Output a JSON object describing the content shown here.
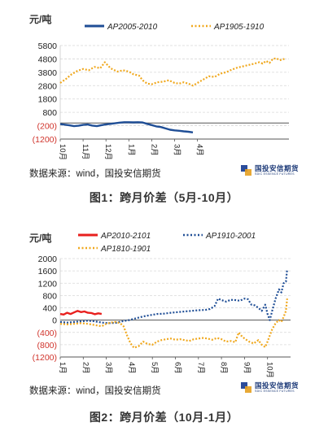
{
  "figure1": {
    "caption": "图1：跨月价差（5月-10月）",
    "source": "数据来源：wind，国投安信期货",
    "logo_text": "国投安信期货",
    "logo_sub": "SDIC ESSENCE FUTURES"
  },
  "figure2": {
    "caption": "图2：跨月价差（10月-1月）",
    "source": "数据来源：wind，国投安信期货",
    "logo_text": "国投安信期货",
    "logo_sub": "SDIC ESSENCE FUTURES"
  },
  "colors": {
    "blue": "#1f4e96",
    "orange": "#f0a81e",
    "red": "#e8201e",
    "grid": "#d8d8d8",
    "axis": "#555555"
  },
  "chart_data": [
    {
      "type": "line",
      "unit": "元/吨",
      "ylim": [
        -1200,
        5800
      ],
      "yticks": [
        5800,
        4800,
        3800,
        2800,
        1800,
        800,
        -200,
        -1200
      ],
      "ytick_labels": [
        "5800",
        "4800",
        "3800",
        "2800",
        "1800",
        "800",
        "(200)",
        "(1200)"
      ],
      "categories": [
        "10月",
        "11月",
        "12月",
        "1月",
        "2月",
        "3月",
        "4月",
        ""
      ],
      "legend_position": "top",
      "grid": true,
      "series": [
        {
          "name": "AP2005-2010",
          "style": "solid",
          "color": "#1f4e96",
          "points": [
            [
              0.0,
              -80
            ],
            [
              0.2,
              -120
            ],
            [
              0.4,
              -170
            ],
            [
              0.6,
              -230
            ],
            [
              0.8,
              -200
            ],
            [
              1.0,
              -140
            ],
            [
              1.2,
              -110
            ],
            [
              1.4,
              -190
            ],
            [
              1.6,
              -230
            ],
            [
              1.8,
              -160
            ],
            [
              2.0,
              -100
            ],
            [
              2.2,
              -60
            ],
            [
              2.4,
              -20
            ],
            [
              2.6,
              30
            ],
            [
              2.8,
              60
            ],
            [
              3.0,
              60
            ],
            [
              3.2,
              50
            ],
            [
              3.4,
              60
            ],
            [
              3.6,
              40
            ],
            [
              3.8,
              -60
            ],
            [
              4.0,
              -150
            ],
            [
              4.2,
              -250
            ],
            [
              4.4,
              -300
            ],
            [
              4.6,
              -400
            ],
            [
              4.8,
              -500
            ],
            [
              5.0,
              -550
            ],
            [
              5.2,
              -580
            ],
            [
              5.4,
              -620
            ],
            [
              5.6,
              -650
            ],
            [
              5.8,
              -700
            ]
          ]
        },
        {
          "name": "AP1905-1910",
          "style": "dotted",
          "color": "#f0a81e",
          "points": [
            [
              0.0,
              3000
            ],
            [
              0.25,
              3300
            ],
            [
              0.5,
              3650
            ],
            [
              0.75,
              3900
            ],
            [
              1.0,
              4050
            ],
            [
              1.25,
              3950
            ],
            [
              1.5,
              4200
            ],
            [
              1.75,
              4100
            ],
            [
              1.95,
              4550
            ],
            [
              2.2,
              4100
            ],
            [
              2.5,
              3850
            ],
            [
              2.75,
              3950
            ],
            [
              3.0,
              3850
            ],
            [
              3.2,
              3650
            ],
            [
              3.45,
              3550
            ],
            [
              3.6,
              3200
            ],
            [
              3.8,
              2950
            ],
            [
              4.0,
              2900
            ],
            [
              4.25,
              3050
            ],
            [
              4.5,
              3100
            ],
            [
              4.75,
              3200
            ],
            [
              5.0,
              3000
            ],
            [
              5.2,
              2950
            ],
            [
              5.4,
              3050
            ],
            [
              5.6,
              2950
            ],
            [
              5.8,
              2800
            ],
            [
              6.0,
              3000
            ],
            [
              6.25,
              3250
            ],
            [
              6.5,
              3500
            ],
            [
              6.75,
              3450
            ],
            [
              7.0,
              3700
            ],
            [
              7.25,
              3800
            ],
            [
              7.5,
              4000
            ],
            [
              7.75,
              4150
            ],
            [
              8.0,
              4250
            ],
            [
              8.25,
              4350
            ],
            [
              8.5,
              4450
            ],
            [
              8.7,
              4550
            ],
            [
              8.85,
              4450
            ],
            [
              9.0,
              4650
            ],
            [
              9.15,
              4500
            ],
            [
              9.3,
              4800
            ],
            [
              9.45,
              4850
            ],
            [
              9.6,
              4700
            ],
            [
              9.8,
              4800
            ]
          ]
        }
      ]
    },
    {
      "type": "line",
      "unit": "元/吨",
      "ylim": [
        -1200,
        2000
      ],
      "yticks": [
        2000,
        1600,
        1200,
        800,
        400,
        0,
        -400,
        -800,
        -1200
      ],
      "ytick_labels": [
        "2000",
        "1600",
        "1200",
        "800",
        "400",
        "0",
        "(400)",
        "(800)",
        "(1200)"
      ],
      "categories": [
        "1月",
        "2月",
        "3月",
        "4月",
        "5月",
        "6月",
        "7月",
        "8月",
        "9月",
        "10月"
      ],
      "legend_position": "top",
      "grid": true,
      "series": [
        {
          "name": "AP2010-2101",
          "style": "solid",
          "color": "#e8201e",
          "points": [
            [
              0.0,
              200
            ],
            [
              0.15,
              180
            ],
            [
              0.3,
              240
            ],
            [
              0.45,
              200
            ],
            [
              0.6,
              250
            ],
            [
              0.75,
              300
            ],
            [
              0.9,
              260
            ],
            [
              1.05,
              280
            ],
            [
              1.2,
              240
            ],
            [
              1.35,
              230
            ],
            [
              1.5,
              190
            ],
            [
              1.65,
              220
            ],
            [
              1.8,
              200
            ]
          ]
        },
        {
          "name": "AP1910-2001",
          "style": "dotted",
          "color": "#1f4e96",
          "points": [
            [
              0.0,
              -60
            ],
            [
              0.3,
              -80
            ],
            [
              0.6,
              -60
            ],
            [
              0.9,
              -40
            ],
            [
              1.2,
              -20
            ],
            [
              1.5,
              -40
            ],
            [
              1.8,
              -80
            ],
            [
              2.1,
              -100
            ],
            [
              2.4,
              -90
            ],
            [
              2.7,
              -40
            ],
            [
              3.0,
              0
            ],
            [
              3.3,
              60
            ],
            [
              3.6,
              120
            ],
            [
              3.9,
              160
            ],
            [
              4.2,
              200
            ],
            [
              4.5,
              210
            ],
            [
              4.8,
              240
            ],
            [
              5.1,
              260
            ],
            [
              5.4,
              280
            ],
            [
              5.7,
              300
            ],
            [
              6.0,
              320
            ],
            [
              6.3,
              330
            ],
            [
              6.5,
              360
            ],
            [
              6.7,
              450
            ],
            [
              6.85,
              700
            ],
            [
              7.0,
              650
            ],
            [
              7.2,
              600
            ],
            [
              7.4,
              660
            ],
            [
              7.6,
              650
            ],
            [
              7.8,
              630
            ],
            [
              8.0,
              700
            ],
            [
              8.15,
              680
            ],
            [
              8.3,
              500
            ],
            [
              8.45,
              480
            ],
            [
              8.6,
              400
            ],
            [
              8.75,
              300
            ],
            [
              8.9,
              500
            ],
            [
              9.0,
              200
            ],
            [
              9.1,
              0
            ],
            [
              9.2,
              300
            ],
            [
              9.35,
              700
            ],
            [
              9.5,
              1000
            ],
            [
              9.6,
              900
            ],
            [
              9.7,
              1200
            ],
            [
              9.8,
              1250
            ],
            [
              9.85,
              1650
            ]
          ]
        },
        {
          "name": "AP1810-1901",
          "style": "dotted",
          "color": "#f0a81e",
          "points": [
            [
              0.0,
              -120
            ],
            [
              0.3,
              -140
            ],
            [
              0.6,
              -120
            ],
            [
              0.9,
              -100
            ],
            [
              1.2,
              -120
            ],
            [
              1.5,
              -160
            ],
            [
              1.8,
              -200
            ],
            [
              2.0,
              -120
            ],
            [
              2.2,
              -80
            ],
            [
              2.4,
              -60
            ],
            [
              2.6,
              -100
            ],
            [
              2.75,
              -200
            ],
            [
              2.9,
              -500
            ],
            [
              3.05,
              -750
            ],
            [
              3.2,
              -900
            ],
            [
              3.4,
              -850
            ],
            [
              3.6,
              -700
            ],
            [
              3.8,
              -780
            ],
            [
              4.0,
              -800
            ],
            [
              4.2,
              -700
            ],
            [
              4.4,
              -650
            ],
            [
              4.6,
              -620
            ],
            [
              4.8,
              -600
            ],
            [
              5.0,
              -640
            ],
            [
              5.2,
              -620
            ],
            [
              5.4,
              -650
            ],
            [
              5.6,
              -680
            ],
            [
              5.8,
              -620
            ],
            [
              6.0,
              -600
            ],
            [
              6.2,
              -580
            ],
            [
              6.4,
              -600
            ],
            [
              6.6,
              -640
            ],
            [
              6.8,
              -580
            ],
            [
              7.0,
              -620
            ],
            [
              7.2,
              -700
            ],
            [
              7.4,
              -680
            ],
            [
              7.6,
              -720
            ],
            [
              7.75,
              -400
            ],
            [
              7.85,
              -500
            ],
            [
              8.0,
              -600
            ],
            [
              8.2,
              -700
            ],
            [
              8.4,
              -760
            ],
            [
              8.6,
              -650
            ],
            [
              8.75,
              -800
            ],
            [
              8.9,
              -880
            ],
            [
              9.0,
              -700
            ],
            [
              9.1,
              -500
            ],
            [
              9.2,
              -300
            ],
            [
              9.35,
              -100
            ],
            [
              9.5,
              0
            ],
            [
              9.6,
              -60
            ],
            [
              9.7,
              100
            ],
            [
              9.8,
              300
            ],
            [
              9.85,
              700
            ]
          ]
        }
      ]
    }
  ]
}
